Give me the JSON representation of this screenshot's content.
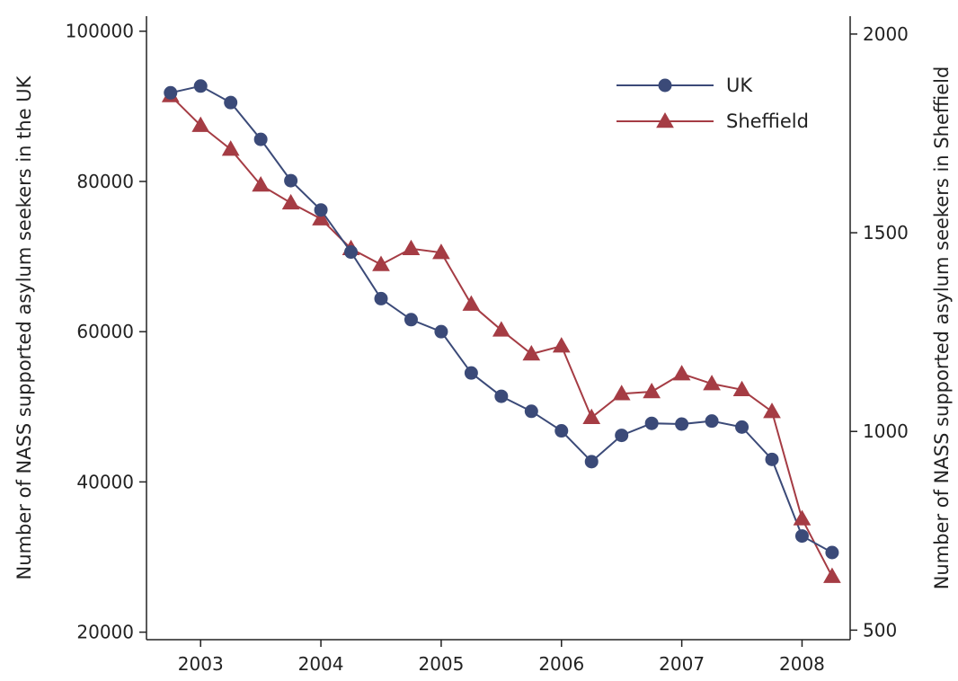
{
  "chart_data": {
    "type": "line",
    "x": [
      2002.75,
      2003.0,
      2003.25,
      2003.5,
      2003.75,
      2004.0,
      2004.25,
      2004.5,
      2004.75,
      2005.0,
      2005.25,
      2005.5,
      2005.75,
      2006.0,
      2006.25,
      2006.5,
      2006.75,
      2007.0,
      2007.25,
      2007.5,
      2007.75,
      2008.0,
      2008.25
    ],
    "x_ticks": [
      "2003",
      "2004",
      "2005",
      "2006",
      "2007",
      "2008"
    ],
    "x_tick_values": [
      2003,
      2004,
      2005,
      2006,
      2007,
      2008
    ],
    "xlim": [
      2002.55,
      2008.4
    ],
    "series": [
      {
        "name": "UK",
        "axis": "left",
        "color": "#3b4a78",
        "marker": "circle",
        "values": [
          91800,
          92700,
          90500,
          85600,
          80100,
          76200,
          70600,
          64400,
          61600,
          60000,
          54500,
          51400,
          49400,
          46800,
          42700,
          46200,
          47800,
          47700,
          48100,
          47300,
          43000,
          32800,
          30600
        ]
      },
      {
        "name": "Sheffield",
        "axis": "right",
        "color": "#a53c44",
        "marker": "triangle",
        "values": [
          1845,
          1770,
          1710,
          1620,
          1575,
          1535,
          1460,
          1420,
          1460,
          1450,
          1320,
          1255,
          1195,
          1215,
          1035,
          1095,
          1100,
          1145,
          1120,
          1105,
          1050,
          780,
          635
        ]
      }
    ],
    "y_left": {
      "label": "Number of NASS supported asylum seekers in the UK",
      "lim": [
        19000,
        102000
      ],
      "ticks": [
        20000,
        40000,
        60000,
        80000,
        100000
      ],
      "tick_labels": [
        "20000",
        "40000",
        "60000",
        "80000",
        "100000"
      ]
    },
    "y_right": {
      "label": "Number of NASS supported asylum seekers in Sheffield",
      "lim": [
        476,
        2045
      ],
      "ticks": [
        500,
        1000,
        1500,
        2000
      ],
      "tick_labels": [
        "500",
        "1000",
        "1500",
        "2000"
      ]
    },
    "legend": {
      "position": "top-right",
      "entries": [
        "UK",
        "Sheffield"
      ]
    },
    "grid": false
  }
}
